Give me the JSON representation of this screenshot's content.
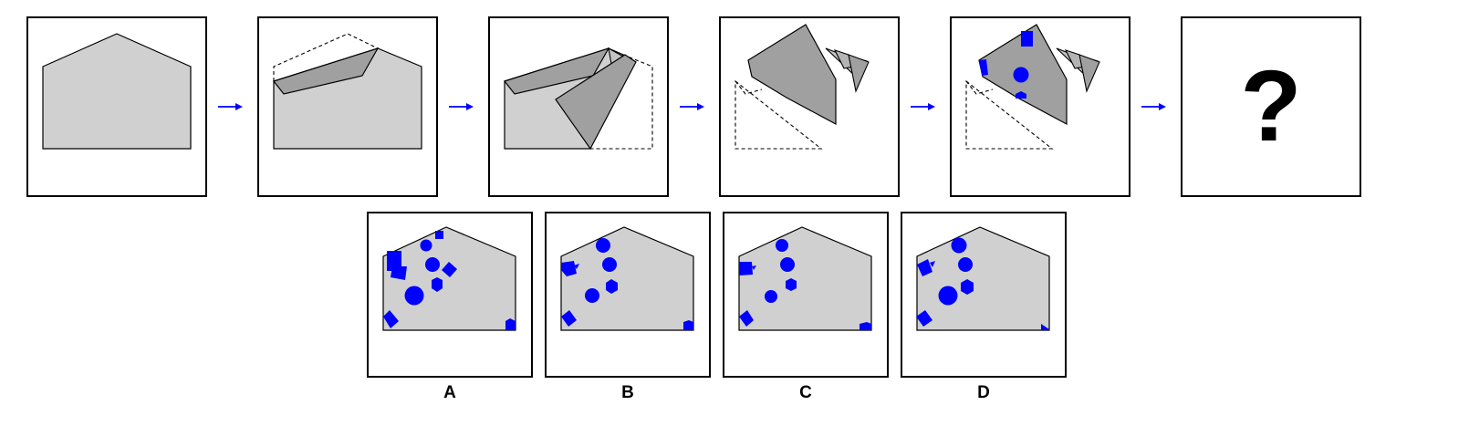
{
  "puzzle": {
    "question_mark": "?",
    "colors": {
      "paper": "#d0d0d0",
      "folded_flap": "#a0a0a0",
      "hole_mark": "#0000ff",
      "arrow": "#0000ff",
      "outline": "#000000"
    },
    "steps": [
      {
        "name": "unfolded-paper"
      },
      {
        "name": "first-fold"
      },
      {
        "name": "second-fold"
      },
      {
        "name": "third-fold"
      },
      {
        "name": "holes-punched"
      },
      {
        "name": "unknown-result"
      }
    ],
    "options": [
      {
        "label": "A"
      },
      {
        "label": "B"
      },
      {
        "label": "C"
      },
      {
        "label": "D"
      }
    ]
  }
}
